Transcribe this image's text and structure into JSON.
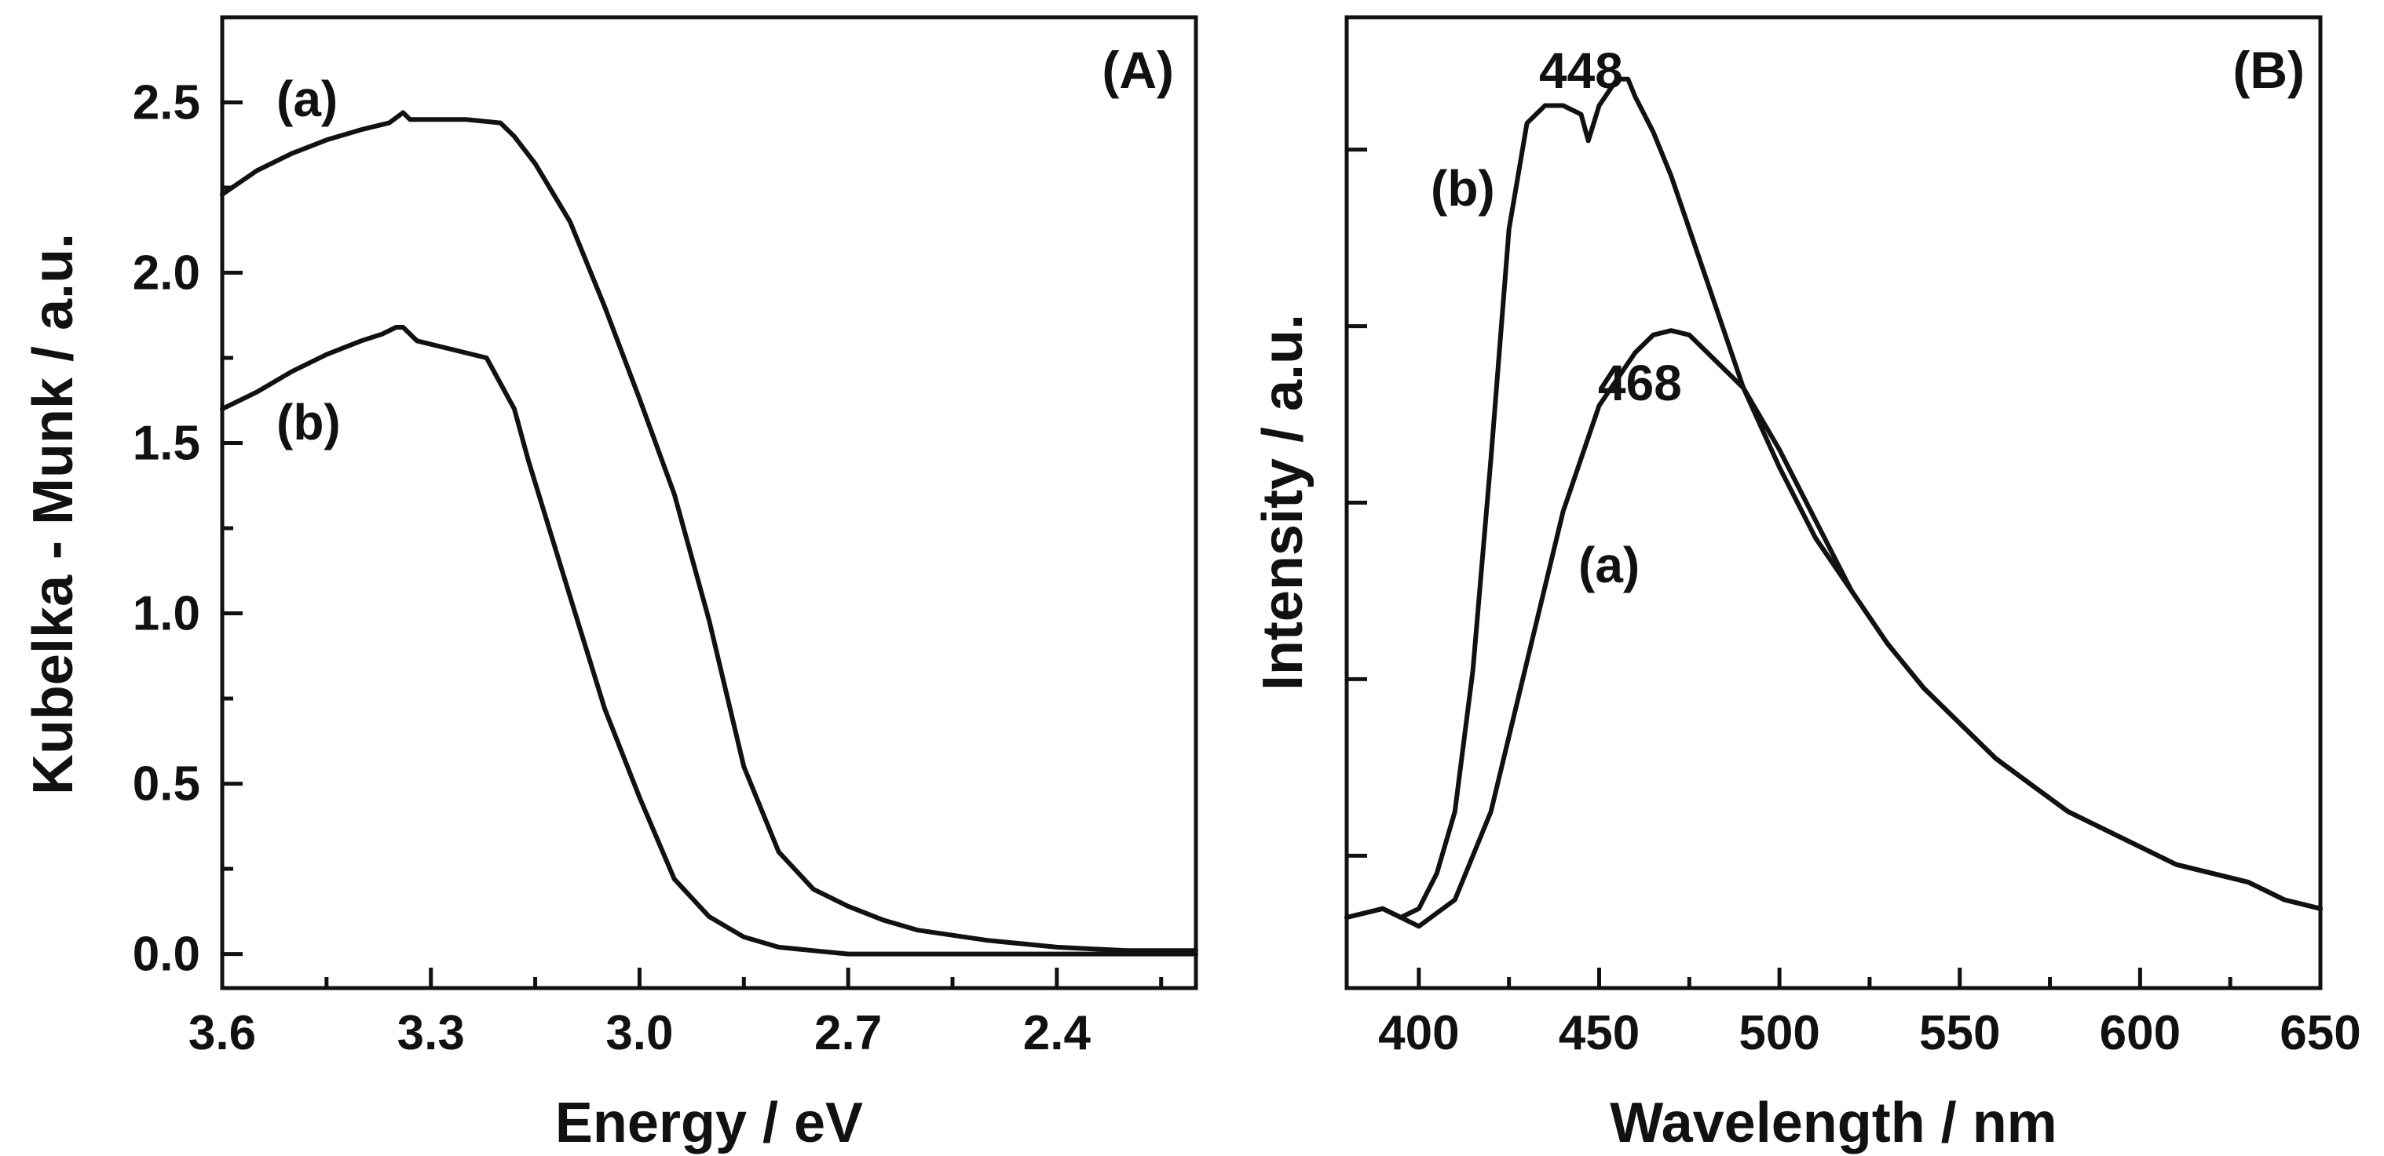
{
  "chart_data": [
    {
      "type": "line",
      "panel_label": "(A)",
      "xlabel": "Energy / eV",
      "ylabel": "Kubelka - Munk / a.u.",
      "xlim": [
        3.6,
        2.2
      ],
      "ylim": [
        -0.1,
        2.75
      ],
      "x_reversed": true,
      "x_ticks": [
        "3.6",
        "3.3",
        "3.0",
        "2.7",
        "2.4"
      ],
      "x_tick_values": [
        3.6,
        3.3,
        3.0,
        2.7,
        2.4
      ],
      "y_ticks": [
        "0.0",
        "0.5",
        "1.0",
        "1.5",
        "2.0",
        "2.5"
      ],
      "y_tick_values": [
        0.0,
        0.5,
        1.0,
        1.5,
        2.0,
        2.5
      ],
      "series": [
        {
          "name": "(a)",
          "x": [
            3.6,
            3.55,
            3.5,
            3.45,
            3.4,
            3.36,
            3.34,
            3.33,
            3.3,
            3.25,
            3.2,
            3.18,
            3.15,
            3.1,
            3.05,
            3.0,
            2.95,
            2.9,
            2.85,
            2.8,
            2.75,
            2.7,
            2.65,
            2.6,
            2.5,
            2.4,
            2.3,
            2.2
          ],
          "y": [
            2.23,
            2.3,
            2.35,
            2.39,
            2.42,
            2.44,
            2.47,
            2.45,
            2.45,
            2.45,
            2.44,
            2.4,
            2.32,
            2.15,
            1.9,
            1.63,
            1.35,
            0.98,
            0.55,
            0.3,
            0.19,
            0.14,
            0.1,
            0.07,
            0.04,
            0.02,
            0.01,
            0.01
          ]
        },
        {
          "name": "(b)",
          "x": [
            3.6,
            3.55,
            3.5,
            3.45,
            3.4,
            3.37,
            3.35,
            3.34,
            3.32,
            3.28,
            3.22,
            3.18,
            3.16,
            3.13,
            3.1,
            3.05,
            3.0,
            2.95,
            2.9,
            2.85,
            2.8,
            2.75,
            2.7,
            2.6,
            2.5,
            2.4,
            2.3,
            2.2
          ],
          "y": [
            1.6,
            1.65,
            1.71,
            1.76,
            1.8,
            1.82,
            1.84,
            1.84,
            1.8,
            1.78,
            1.75,
            1.6,
            1.45,
            1.25,
            1.05,
            0.72,
            0.46,
            0.22,
            0.11,
            0.05,
            0.02,
            0.01,
            0.0,
            0.0,
            0.0,
            0.0,
            0.0,
            0.0
          ]
        }
      ],
      "annotations": [
        "(a)",
        "(b)"
      ]
    },
    {
      "type": "line",
      "panel_label": "(B)",
      "xlabel": "Wavelength / nm",
      "ylabel": "Intensity / a.u.",
      "xlim": [
        380,
        650
      ],
      "ylim": [
        0,
        1.1
      ],
      "x_ticks": [
        "400",
        "450",
        "500",
        "550",
        "600",
        "650"
      ],
      "x_tick_values": [
        400,
        450,
        500,
        550,
        600,
        650
      ],
      "y_ticks_unlabeled": true,
      "y_tick_values": [
        0.15,
        0.35,
        0.55,
        0.75,
        0.95
      ],
      "series": [
        {
          "name": "(a)",
          "x": [
            380,
            390,
            395,
            400,
            410,
            420,
            430,
            440,
            450,
            460,
            465,
            470,
            475,
            480,
            490,
            500,
            510,
            520,
            530,
            540,
            550,
            560,
            570,
            580,
            590,
            600,
            610,
            620,
            630,
            640,
            650
          ],
          "y": [
            0.08,
            0.09,
            0.08,
            0.07,
            0.1,
            0.2,
            0.37,
            0.54,
            0.66,
            0.72,
            0.74,
            0.745,
            0.74,
            0.72,
            0.68,
            0.61,
            0.53,
            0.45,
            0.39,
            0.34,
            0.3,
            0.26,
            0.23,
            0.2,
            0.18,
            0.16,
            0.14,
            0.13,
            0.12,
            0.1,
            0.09
          ]
        },
        {
          "name": "(b)",
          "x": [
            380,
            390,
            395,
            400,
            405,
            410,
            415,
            420,
            425,
            430,
            435,
            440,
            445,
            447,
            450,
            455,
            458,
            460,
            465,
            470,
            480,
            490,
            500,
            510,
            520,
            530,
            540,
            550,
            560,
            570,
            580,
            590,
            600,
            610,
            620,
            630,
            640,
            650
          ],
          "y": [
            0.08,
            0.09,
            0.08,
            0.09,
            0.13,
            0.2,
            0.36,
            0.6,
            0.86,
            0.98,
            1.0,
            1.0,
            0.99,
            0.96,
            1.0,
            1.03,
            1.03,
            1.01,
            0.97,
            0.92,
            0.8,
            0.68,
            0.59,
            0.51,
            0.45,
            0.39,
            0.34,
            0.3,
            0.26,
            0.23,
            0.2,
            0.18,
            0.16,
            0.14,
            0.13,
            0.12,
            0.1,
            0.09
          ]
        }
      ],
      "annotations": [
        "(b)",
        "(a)",
        "448",
        "468"
      ]
    }
  ]
}
